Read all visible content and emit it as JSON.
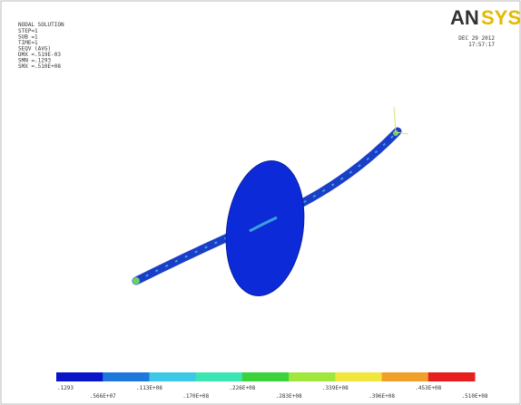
{
  "info": {
    "title": "NODAL SOLUTION",
    "lines": [
      "STEP=1",
      "SUB =1",
      "TIME=1",
      "SEQV    (AVG)",
      "DMX =.519E-03",
      "SMN =.1293",
      "SMX =.510E+08"
    ]
  },
  "logo": {
    "left": "AN",
    "right": "SYS"
  },
  "date": "DEC 29 2012",
  "time": "17:57:17",
  "legend": {
    "labels": [
      ".1293",
      ".566E+07",
      ".113E+08",
      ".170E+08",
      ".226E+08",
      ".283E+08",
      ".339E+08",
      ".396E+08",
      ".453E+08",
      ".510E+08"
    ],
    "colors": [
      "#0a14c8",
      "#1e78dc",
      "#3cc8e6",
      "#3ce6b4",
      "#3cd23c",
      "#a0e63c",
      "#f0e63c",
      "#f0a028",
      "#e61e1e"
    ]
  }
}
